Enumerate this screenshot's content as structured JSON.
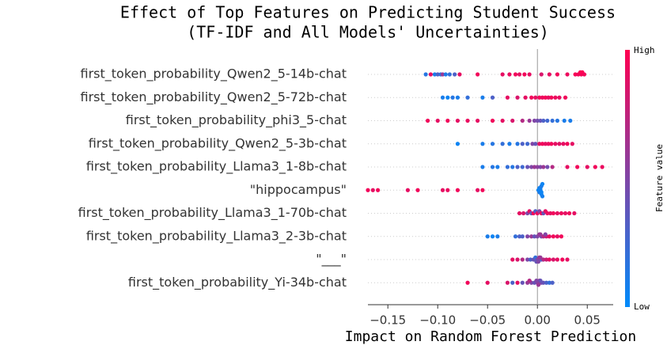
{
  "chart_data": {
    "type": "beeswarm",
    "title": [
      "Effect of Top Features on Predicting Student Success",
      "(TF-IDF and All Models' Uncertainties)"
    ],
    "xlabel": "Impact on Random Forest Prediction",
    "colorbar_label": "Feature value",
    "colorbar_high": "High",
    "colorbar_low": "Low",
    "low_color": "#008bfb",
    "high_color": "#ff0051",
    "xlim": [
      -0.17,
      0.076
    ],
    "xticks": [
      {
        "value": -0.15,
        "label": "−0.15"
      },
      {
        "value": -0.1,
        "label": "−0.10"
      },
      {
        "value": -0.05,
        "label": "−0.05"
      },
      {
        "value": 0,
        "label": "0.00"
      },
      0.05
    ],
    "grid": true,
    "series": [
      {
        "name": "first_token_probability_Qwen2_5-14b-chat",
        "shap": [
          -0.112,
          -0.107,
          -0.103,
          -0.1,
          -0.097,
          -0.095,
          -0.092,
          -0.088,
          -0.083,
          -0.078,
          -0.06,
          -0.035,
          -0.028,
          -0.022,
          -0.018,
          -0.013,
          -0.008,
          0.004,
          0.012,
          0.02,
          0.03,
          0.038,
          0.041,
          0.043,
          0.044,
          0.045,
          0.047
        ],
        "feature": [
          0.15,
          0.9,
          0.1,
          0.3,
          0.2,
          0.6,
          0.1,
          0.2,
          0.3,
          0.9,
          0.95,
          0.9,
          0.92,
          0.95,
          0.9,
          0.95,
          0.9,
          0.85,
          0.9,
          0.95,
          0.93,
          0.97,
          0.95,
          0.98,
          0.96,
          0.99,
          0.95
        ]
      },
      {
        "name": "first_token_probability_Qwen2_5-72b-chat",
        "shap": [
          -0.095,
          -0.09,
          -0.085,
          -0.08,
          -0.07,
          -0.055,
          -0.045,
          -0.03,
          -0.02,
          -0.012,
          -0.006,
          -0.002,
          0.002,
          0.005,
          0.008,
          0.011,
          0.014,
          0.018,
          0.022,
          0.028
        ],
        "feature": [
          0.1,
          0.05,
          0.15,
          0.1,
          0.2,
          0.1,
          0.3,
          0.9,
          0.85,
          0.9,
          0.95,
          0.9,
          0.95,
          0.92,
          0.97,
          0.9,
          0.95,
          0.93,
          0.9,
          0.95
        ]
      },
      {
        "name": "first_token_probability_phi3_5-chat",
        "shap": [
          -0.11,
          -0.1,
          -0.09,
          -0.08,
          -0.07,
          -0.06,
          -0.045,
          -0.035,
          -0.025,
          -0.015,
          -0.008,
          -0.003,
          0.0,
          0.003,
          0.006,
          0.01,
          0.015,
          0.02,
          0.027,
          0.033
        ],
        "feature": [
          0.95,
          0.9,
          0.95,
          0.9,
          0.92,
          0.9,
          0.95,
          0.9,
          0.85,
          0.7,
          0.6,
          0.5,
          0.45,
          0.4,
          0.3,
          0.25,
          0.2,
          0.15,
          0.1,
          0.1
        ]
      },
      {
        "name": "first_token_probability_Qwen2_5-3b-chat",
        "shap": [
          -0.08,
          -0.055,
          -0.045,
          -0.035,
          -0.028,
          -0.02,
          -0.015,
          -0.01,
          -0.005,
          -0.002,
          0.002,
          0.005,
          0.008,
          0.011,
          0.014,
          0.018,
          0.022,
          0.026,
          0.03,
          0.035
        ],
        "feature": [
          0.05,
          0.1,
          0.15,
          0.2,
          0.1,
          0.15,
          0.3,
          0.25,
          0.5,
          0.4,
          0.9,
          0.95,
          0.9,
          0.92,
          0.95,
          0.9,
          0.88,
          0.9,
          0.95,
          0.9
        ]
      },
      {
        "name": "first_token_probability_Llama3_1-8b-chat",
        "shap": [
          -0.055,
          -0.045,
          -0.04,
          -0.03,
          -0.025,
          -0.02,
          -0.015,
          -0.01,
          -0.006,
          -0.003,
          0.0,
          0.003,
          0.006,
          0.01,
          0.015,
          0.03,
          0.04,
          0.05,
          0.058,
          0.065
        ],
        "feature": [
          0.1,
          0.15,
          0.1,
          0.2,
          0.15,
          0.3,
          0.25,
          0.4,
          0.5,
          0.6,
          0.55,
          0.5,
          0.6,
          0.45,
          0.7,
          0.9,
          0.95,
          0.9,
          0.95,
          0.92
        ]
      },
      {
        "name": "\"hippocampus\"",
        "shap": [
          -0.17,
          -0.165,
          -0.16,
          -0.13,
          -0.12,
          -0.095,
          -0.09,
          -0.08,
          -0.06,
          -0.055,
          0.001,
          0.002,
          0.002,
          0.003,
          0.003,
          0.004,
          0.004,
          0.004,
          0.005,
          0.005
        ],
        "feature": [
          0.95,
          0.9,
          0.95,
          0.9,
          0.95,
          0.9,
          0.92,
          0.95,
          0.9,
          0.95,
          0.05,
          0.05,
          0.1,
          0.05,
          0.08,
          0.05,
          0.1,
          0.05,
          0.05,
          0.08
        ]
      },
      {
        "name": "first_token_probability_Llama3_1-70b-chat",
        "shap": [
          -0.018,
          -0.014,
          -0.01,
          -0.008,
          -0.006,
          -0.004,
          -0.002,
          0.0,
          0.002,
          0.004,
          0.006,
          0.008,
          0.01,
          0.013,
          0.016,
          0.02,
          0.024,
          0.028,
          0.032,
          0.037
        ],
        "feature": [
          0.9,
          0.85,
          0.5,
          0.9,
          0.4,
          0.95,
          0.3,
          0.9,
          0.5,
          0.95,
          0.4,
          0.9,
          0.92,
          0.9,
          0.95,
          0.9,
          0.93,
          0.9,
          0.95,
          0.9
        ]
      },
      {
        "name": "first_token_probability_Llama3_2-3b-chat",
        "shap": [
          -0.05,
          -0.045,
          -0.04,
          -0.022,
          -0.015,
          -0.01,
          -0.006,
          -0.003,
          0.0,
          0.002,
          0.004,
          0.006,
          0.009,
          0.012,
          0.016,
          0.02,
          0.024,
          -0.018,
          0.008,
          0.003
        ],
        "feature": [
          0.1,
          0.05,
          0.1,
          0.2,
          0.3,
          0.5,
          0.6,
          0.4,
          0.5,
          0.6,
          0.45,
          0.7,
          0.8,
          0.9,
          0.95,
          0.9,
          0.95,
          0.3,
          0.5,
          0.6
        ]
      },
      {
        "name": "\"___\"",
        "shap": [
          -0.025,
          -0.02,
          -0.015,
          -0.01,
          -0.007,
          -0.004,
          -0.002,
          0.0,
          0.002,
          0.004,
          0.006,
          0.009,
          0.012,
          0.016,
          0.02,
          0.025,
          0.03,
          -0.001,
          0.001,
          0.003
        ],
        "feature": [
          0.9,
          0.85,
          0.7,
          0.5,
          0.3,
          0.4,
          0.2,
          0.5,
          0.6,
          0.3,
          0.7,
          0.8,
          0.9,
          0.85,
          0.9,
          0.95,
          0.9,
          0.4,
          0.5,
          0.6
        ]
      },
      {
        "name": "first_token_probability_Yi-34b-chat",
        "shap": [
          -0.07,
          -0.05,
          -0.03,
          -0.025,
          -0.02,
          -0.015,
          -0.01,
          -0.006,
          -0.003,
          0.0,
          0.002,
          0.004,
          0.006,
          0.009,
          0.012,
          0.015,
          -0.001,
          0.001,
          0.003,
          -0.008
        ],
        "feature": [
          0.95,
          0.9,
          0.85,
          0.3,
          0.9,
          0.4,
          0.6,
          0.5,
          0.4,
          0.5,
          0.6,
          0.5,
          0.4,
          0.3,
          0.2,
          0.3,
          0.5,
          0.6,
          0.4,
          0.7
        ]
      }
    ]
  }
}
